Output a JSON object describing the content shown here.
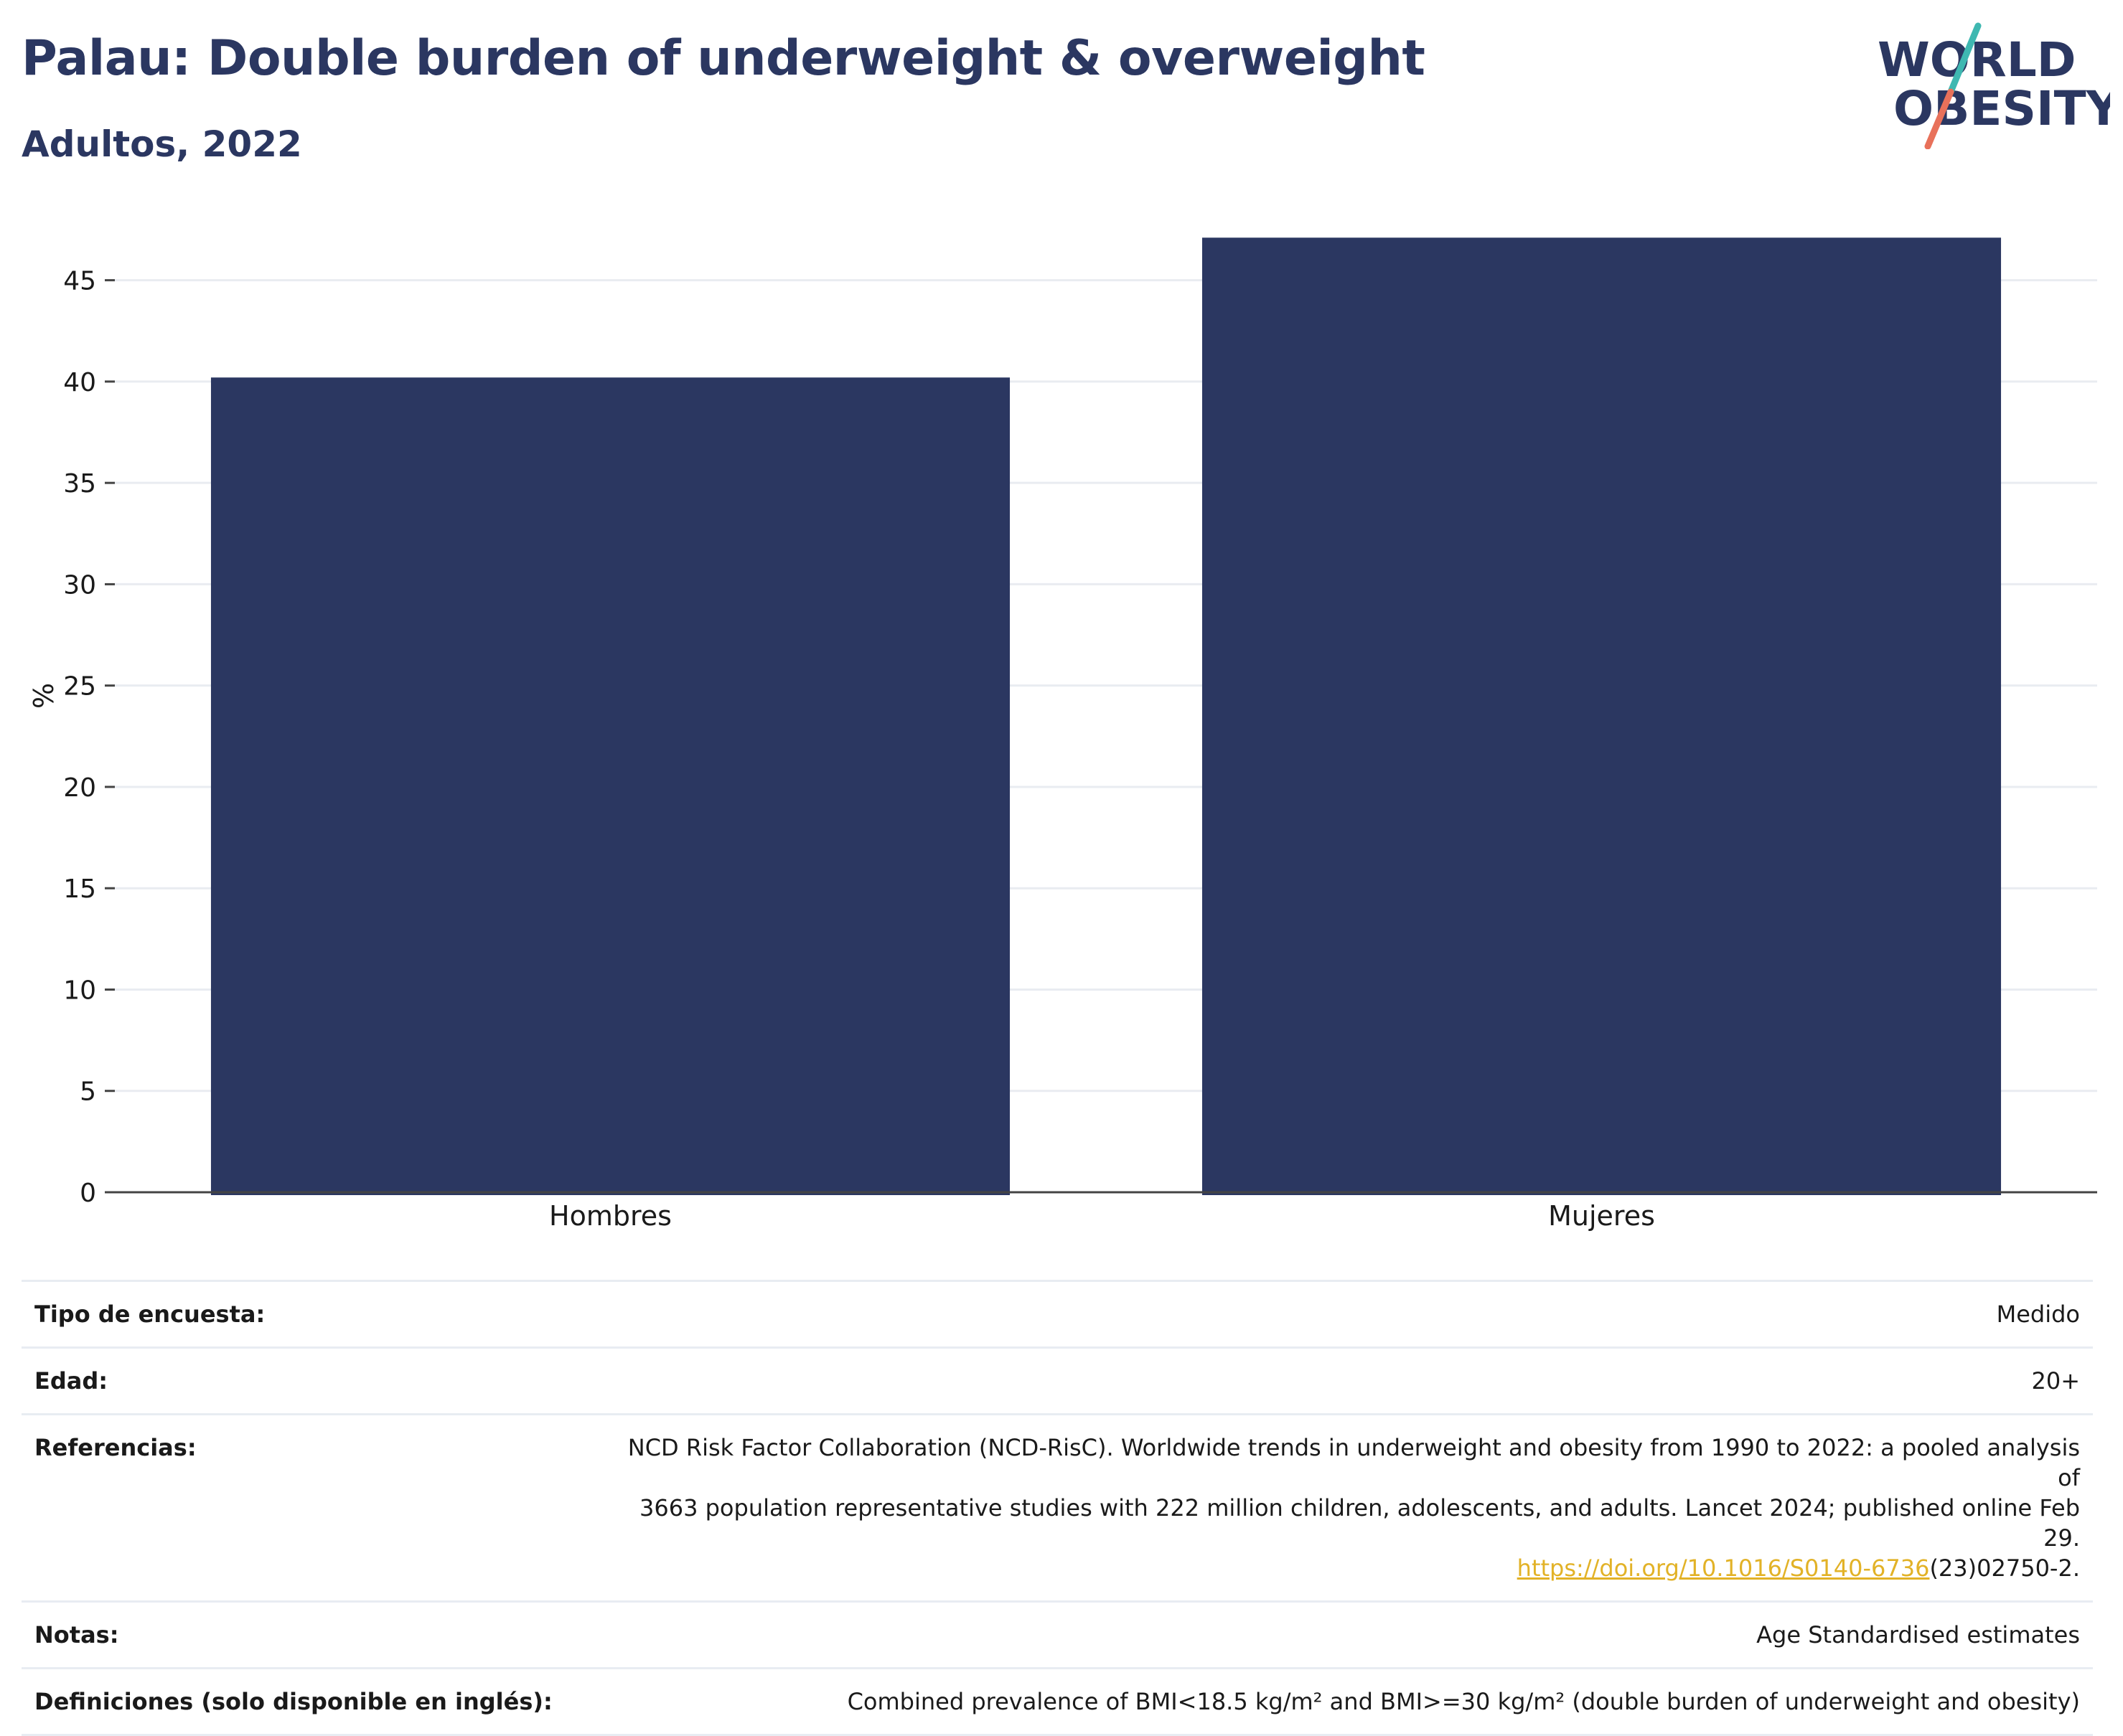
{
  "header": {
    "title": "Palau: Double burden of underweight & overweight",
    "subtitle": "Adultos, 2022"
  },
  "logo": {
    "line1": "WORLD",
    "line2": "OBESITY",
    "text_color": "#2b3761",
    "slash_colors": [
      "#3fb8b1",
      "#e8715a"
    ]
  },
  "chart_data": {
    "type": "bar",
    "title": "",
    "categories": [
      "Hombres",
      "Mujeres"
    ],
    "values": [
      40.2,
      47.1
    ],
    "xlabel": "",
    "ylabel": "%",
    "ylim": [
      0,
      47.5
    ],
    "yticks": [
      0,
      5,
      10,
      15,
      20,
      25,
      30,
      35,
      40,
      45
    ],
    "grid": true,
    "legend": "none",
    "bar_color": "#2b3761"
  },
  "details": {
    "survey_type": {
      "label": "Tipo de encuesta:",
      "value": "Medido"
    },
    "age": {
      "label": "Edad:",
      "value": "20+"
    },
    "references": {
      "label": "Referencias:",
      "line1": "NCD Risk Factor Collaboration (NCD-RisC). Worldwide trends in underweight and obesity from 1990 to 2022: a pooled analysis of",
      "line2": "3663 population representative studies with 222 million children, adolescents, and adults. Lancet 2024; published online Feb 29.",
      "link": "https://doi.org/10.1016/S0140-6736",
      "link_suffix": "(23)02750-2."
    },
    "notes": {
      "label": "Notas:",
      "value": "Age Standardised estimates"
    },
    "definitions": {
      "label": "Definiciones (solo disponible en inglés):",
      "value": "Combined prevalence of BMI<18.5 kg/m² and BMI>=30 kg/m² (double burden of underweight and obesity)"
    }
  }
}
